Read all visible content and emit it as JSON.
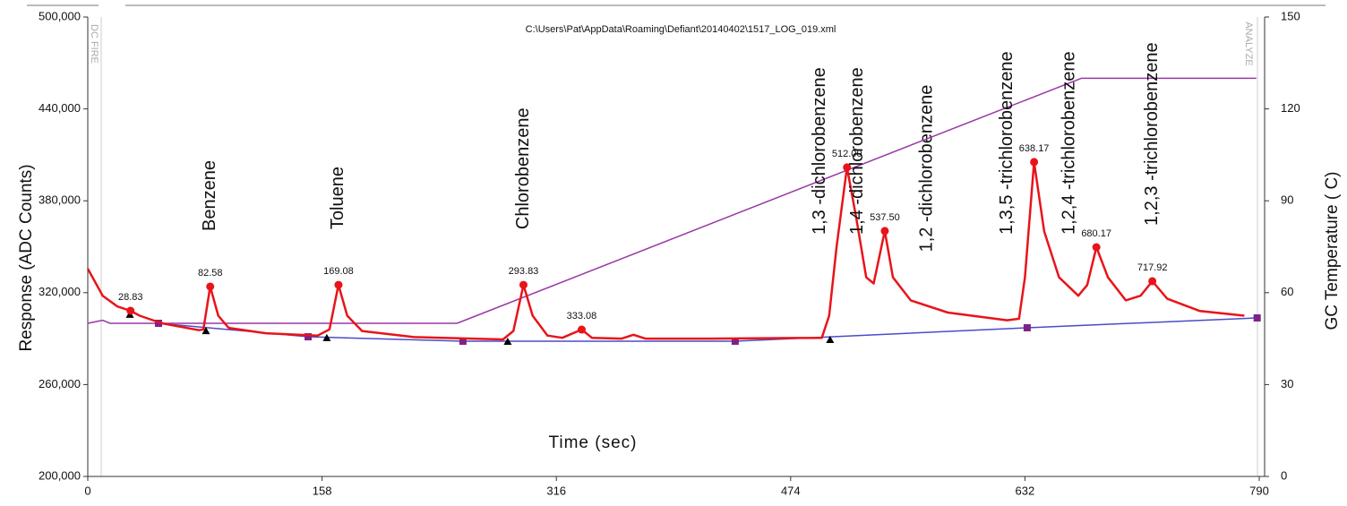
{
  "chart_data": {
    "type": "line",
    "file": "C:\\Users\\Pat\\AppData\\Roaming\\Defiant\\20140402\\1517_LOG_019.xml",
    "events": [
      "DC FIRE",
      "ANALYZE"
    ],
    "xlabel": "Time (sec)",
    "ylabel": "Response (ADC Counts)",
    "y2label": "GC Temperature ( C)",
    "xlim": [
      0,
      790
    ],
    "xticks": [
      0,
      158,
      316,
      474,
      632,
      790
    ],
    "ylim": [
      200000,
      500000
    ],
    "yticks": [
      {
        "value": 200000,
        "label": "200,000"
      },
      {
        "value": 260000,
        "label": "260,000"
      },
      {
        "value": 320000,
        "label": "320,000"
      },
      {
        "value": 380000,
        "label": "380,000"
      },
      {
        "value": 440000,
        "label": "440,000"
      },
      {
        "value": 500000,
        "label": "500,000"
      }
    ],
    "y2lim": [
      0,
      150
    ],
    "y2ticks": [
      0,
      30,
      60,
      90,
      120,
      150
    ],
    "series": [
      {
        "color": "#9c36a8",
        "axis": "y2",
        "x": [
          0,
          10,
          15,
          249,
          670,
          788
        ],
        "values": [
          50,
          51,
          50,
          50,
          130,
          130
        ]
      },
      {
        "color": "#4b4bc8",
        "marker": "square",
        "marker_color": "#7b2389",
        "x": [
          47.7,
          148.6,
          253,
          436.6,
          633.5,
          788.6
        ],
        "values": [
          300000,
          291200,
          288300,
          288300,
          297100,
          303500
        ]
      },
      {
        "color": "#e8141a",
        "x": [
          0,
          10,
          20,
          28.83,
          35,
          50,
          75,
          78,
          82.58,
          88,
          95,
          120,
          155,
          163,
          169.08,
          175,
          185,
          220,
          280,
          287,
          293.83,
          300,
          310,
          320,
          333.08,
          340,
          360,
          368,
          376,
          420,
          495,
          500,
          505,
          512,
          518,
          525,
          530,
          537.5,
          543,
          555,
          580,
          620,
          628,
          632,
          638.17,
          645,
          655,
          668,
          674,
          680.17,
          688,
          700,
          710,
          717.92,
          728,
          750,
          780
        ],
        "values": [
          335700,
          318000,
          311000,
          308200,
          305000,
          300000,
          295500,
          296000,
          324000,
          305000,
          297000,
          293500,
          292000,
          296000,
          325100,
          305000,
          295000,
          291000,
          289500,
          295000,
          325100,
          305000,
          292000,
          290500,
          295900,
          290500,
          290000,
          292500,
          290000,
          290000,
          290500,
          305000,
          350000,
          401800,
          370000,
          330000,
          326000,
          360300,
          330000,
          315000,
          307000,
          302000,
          303000,
          330000,
          405300,
          360000,
          330000,
          318000,
          325000,
          349700,
          330000,
          315000,
          318000,
          327500,
          316000,
          308000,
          305000
        ]
      },
      {
        "color": "#000000",
        "marker": "triangle",
        "line": false,
        "x": [
          28.4,
          79.7,
          161.2,
          283.2,
          500.6
        ],
        "values": [
          305300,
          294700,
          290100,
          287700,
          288900
        ]
      }
    ],
    "peaks": {
      "color": "#e8141a",
      "x": [
        28.83,
        82.58,
        169.08,
        293.83,
        333.08,
        {
          "value": 512,
          "label": "512.00"
        },
        {
          "value": 537.5,
          "label": "537.50"
        },
        638.17,
        680.17,
        717.92
      ],
      "values": [
        308200,
        324000,
        325100,
        325100,
        295900,
        401800,
        360300,
        405300,
        349700,
        327500
      ],
      "compounds": [
        null,
        "Benzene",
        "Toluene",
        "Chlorobenzene",
        null,
        "1,3 -dichlorobenzene",
        "1,4 -dichlorobenzene",
        "1,3,5 -trichlorobenzene",
        "1,2,4 -trichlorobenzene",
        "1,2,3 -trichlorobenzene"
      ]
    },
    "extra_label": "1,2 -dichlorobenzene"
  }
}
